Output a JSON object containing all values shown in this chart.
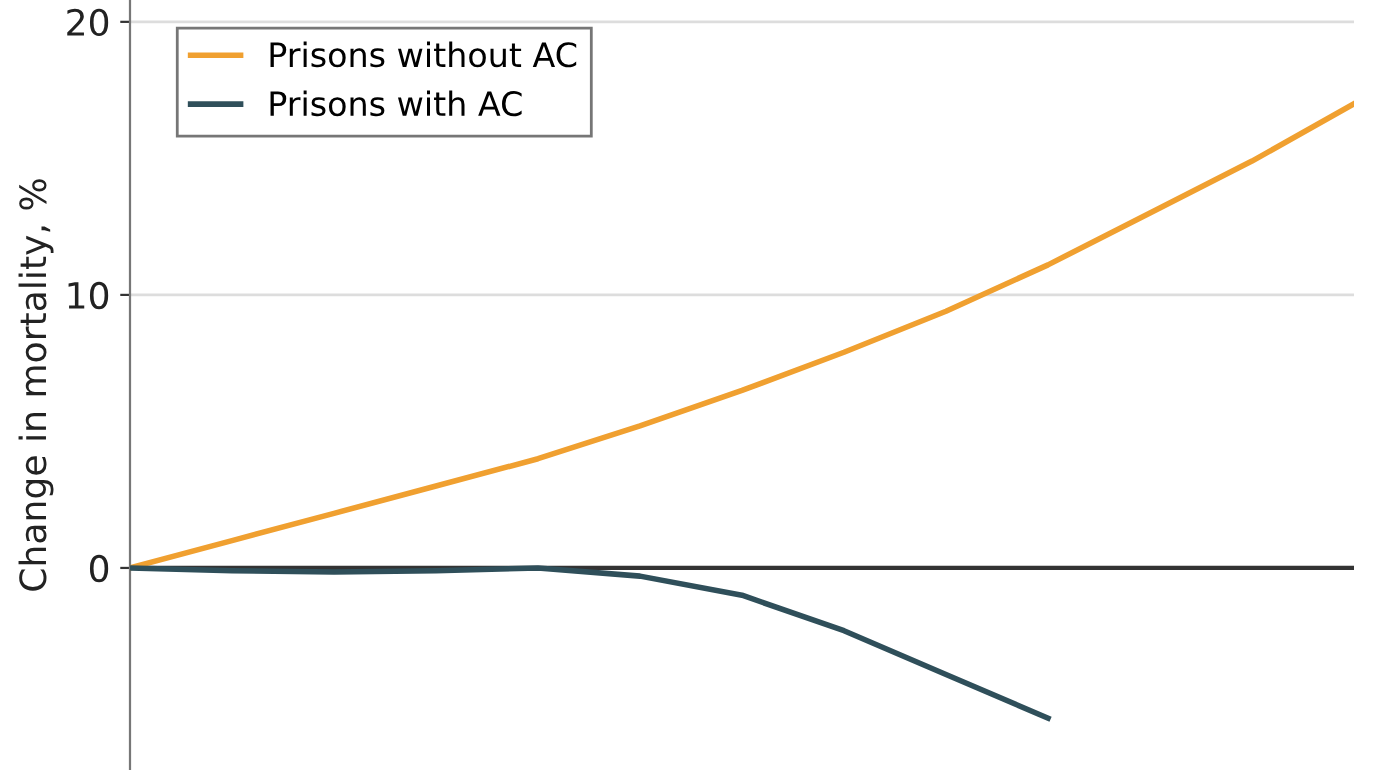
{
  "chart_data": {
    "type": "line",
    "ylabel": "Change in mortality, %",
    "categories": [
      null,
      null,
      null,
      null,
      null,
      null,
      null,
      null,
      null,
      null,
      null,
      null,
      null
    ],
    "series": [
      {
        "name": "Prisons without AC",
        "color": "#f0a030",
        "values": [
          0,
          1.0,
          2.0,
          3.0,
          4.0,
          5.2,
          6.5,
          7.9,
          9.4,
          11.1,
          13.0,
          14.9,
          17.0
        ]
      },
      {
        "name": "Prisons with AC",
        "color": "#2f4f5a",
        "values": [
          0,
          -0.1,
          -0.15,
          -0.1,
          0,
          -0.3,
          -1.0,
          -2.3,
          -3.9,
          -5.5,
          null,
          null,
          null
        ]
      }
    ],
    "ylim": [
      -7.4,
      20.8
    ],
    "yticks": [
      0,
      10,
      20
    ],
    "grid": "y",
    "legend": "top left",
    "line_style": "solid",
    "marker": "none",
    "ref_lines": [
      {
        "axis": "y",
        "value": 0,
        "color": "#333333"
      }
    ]
  }
}
